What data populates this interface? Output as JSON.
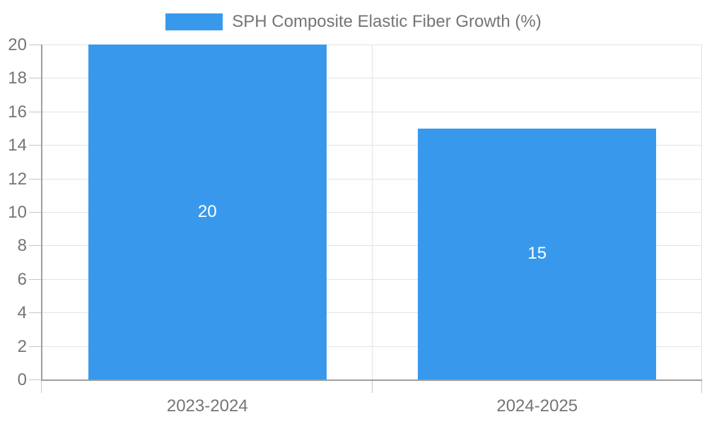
{
  "chart": {
    "legend": {
      "label": "SPH Composite Elastic Fiber Growth (%)"
    },
    "colors": {
      "bar": "#3899EC",
      "axis_text": "#757575",
      "data_label": "#FFFFFF",
      "gridline": "#E3E3E3",
      "axis_line": "#9E9E9E",
      "tick": "#C6C6C6",
      "background": "#FFFFFF"
    }
  },
  "chart_data": {
    "type": "bar",
    "title": "",
    "xlabel": "",
    "ylabel": "",
    "categories": [
      "2023-2024",
      "2024-2025"
    ],
    "series": [
      {
        "name": "SPH Composite Elastic Fiber Growth (%)",
        "values": [
          20,
          15
        ]
      }
    ],
    "data_labels": [
      "20",
      "15"
    ],
    "ylim": [
      0,
      20
    ],
    "yticks": [
      0,
      2,
      4,
      6,
      8,
      10,
      12,
      14,
      16,
      18,
      20
    ],
    "grid": true,
    "legend_position": "top"
  }
}
